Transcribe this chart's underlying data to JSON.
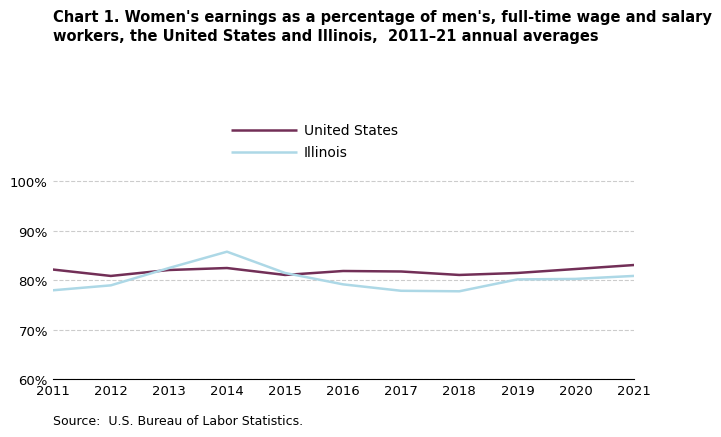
{
  "years": [
    2011,
    2012,
    2013,
    2014,
    2015,
    2016,
    2017,
    2018,
    2019,
    2020,
    2021
  ],
  "us_values": [
    82.2,
    80.9,
    82.1,
    82.5,
    81.1,
    81.9,
    81.8,
    81.1,
    81.5,
    82.3,
    83.1
  ],
  "il_values": [
    78.0,
    79.0,
    82.5,
    85.8,
    81.5,
    79.2,
    77.9,
    77.8,
    80.2,
    80.3,
    80.9
  ],
  "us_color": "#722F57",
  "il_color": "#ADD8E6",
  "title_line1": "Chart 1. Women's earnings as a percentage of men's, full-time wage and salary",
  "title_line2": "workers, the United States and Illinois,  2011–21 annual averages",
  "legend_us": "United States",
  "legend_il": "Illinois",
  "source_text": "Source:  U.S. Bureau of Labor Statistics.",
  "ylim_min": 60,
  "ylim_max": 102,
  "yticks": [
    60,
    70,
    80,
    90,
    100
  ],
  "xlim_min": 2011,
  "xlim_max": 2021,
  "background_color": "#ffffff",
  "grid_color": "#cccccc",
  "title_fontsize": 10.5,
  "legend_fontsize": 10,
  "source_fontsize": 9,
  "tick_fontsize": 9.5,
  "line_width": 1.8
}
